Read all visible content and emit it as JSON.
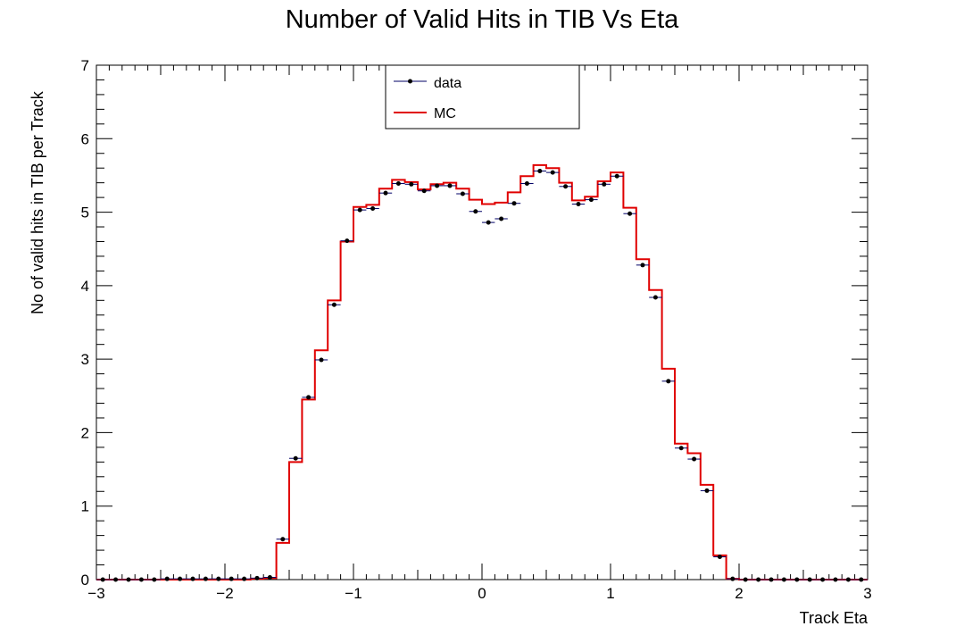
{
  "chart_data": {
    "type": "line",
    "title": "Number of Valid Hits in TIB Vs Eta",
    "xlabel": "Track Eta",
    "ylabel": "No of valid hits in TIB per Track",
    "xlim": [
      -3,
      3
    ],
    "ylim": [
      0,
      7
    ],
    "x_ticks": [
      "−3",
      "−2",
      "−1",
      "0",
      "1",
      "2",
      "3"
    ],
    "y_ticks": [
      "0",
      "1",
      "2",
      "3",
      "4",
      "5",
      "6",
      "7"
    ],
    "legend_position": "top-center",
    "bins": {
      "count": 60,
      "low": -3,
      "high": 3
    },
    "series": [
      {
        "name": "data",
        "style": "points",
        "color": "#000066",
        "values": [
          0,
          0,
          0,
          0,
          0,
          0.01,
          0.01,
          0.01,
          0.01,
          0.01,
          0.01,
          0.01,
          0.02,
          0.03,
          0.55,
          1.65,
          2.48,
          2.99,
          3.74,
          4.61,
          5.03,
          5.05,
          5.26,
          5.39,
          5.38,
          5.29,
          5.36,
          5.36,
          5.25,
          5.01,
          4.86,
          4.91,
          5.12,
          5.39,
          5.56,
          5.54,
          5.35,
          5.11,
          5.17,
          5.38,
          5.49,
          4.98,
          4.28,
          3.84,
          2.7,
          1.79,
          1.64,
          1.21,
          0.31,
          0.01,
          0,
          0,
          0,
          0,
          0,
          0,
          0,
          0,
          0,
          0
        ]
      },
      {
        "name": "MC",
        "style": "step",
        "color": "#e00000",
        "values": [
          0,
          0,
          0,
          0,
          0,
          0,
          0,
          0,
          0,
          0,
          0,
          0,
          0.01,
          0.02,
          0.5,
          1.6,
          2.45,
          3.12,
          3.8,
          4.6,
          5.07,
          5.1,
          5.32,
          5.44,
          5.41,
          5.31,
          5.38,
          5.4,
          5.32,
          5.17,
          5.11,
          5.13,
          5.27,
          5.49,
          5.64,
          5.6,
          5.4,
          5.16,
          5.21,
          5.42,
          5.54,
          5.06,
          4.36,
          3.94,
          2.87,
          1.85,
          1.72,
          1.29,
          0.33,
          0.01,
          0,
          0,
          0,
          0,
          0,
          0,
          0,
          0,
          0,
          0
        ]
      }
    ]
  }
}
